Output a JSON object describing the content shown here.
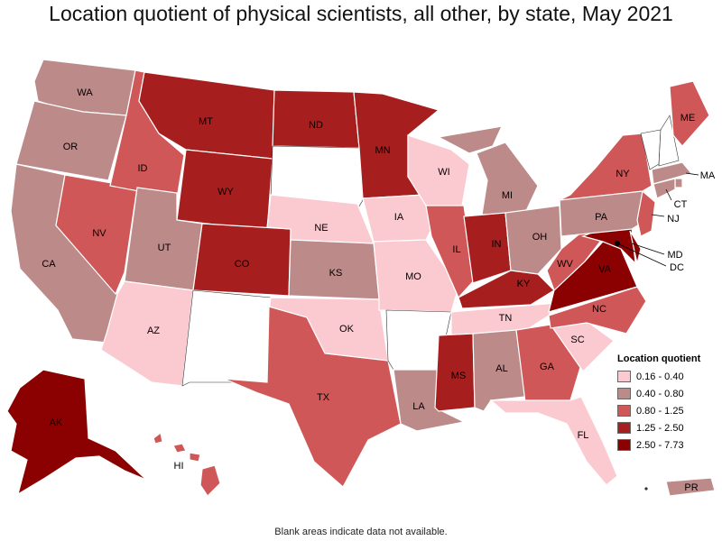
{
  "title": "Location quotient of physical scientists, all other, by state, May 2021",
  "note": "Blank areas indicate data not available.",
  "legend": {
    "title": "Location quotient",
    "classes": [
      {
        "label": "0.16 - 0.40",
        "color": "#fbc9d0"
      },
      {
        "label": "0.40 - 0.80",
        "color": "#bd8a8a"
      },
      {
        "label": "0.80 - 1.25",
        "color": "#cf5757"
      },
      {
        "label": "1.25 - 2.50",
        "color": "#a61e1e"
      },
      {
        "label": "2.50 - 7.73",
        "color": "#8b0000"
      }
    ]
  },
  "no_data_color": "#ffffff",
  "states": {
    "WA": "WA",
    "OR": "OR",
    "CA": "CA",
    "NV": "NV",
    "ID": "ID",
    "MT": "MT",
    "WY": "WY",
    "UT": "UT",
    "AZ": "AZ",
    "CO": "CO",
    "NE": "NE",
    "KS": "KS",
    "OK": "OK",
    "TX": "TX",
    "ND": "ND",
    "MN": "MN",
    "IA": "IA",
    "MO": "MO",
    "WI": "WI",
    "IL": "IL",
    "MI": "MI",
    "IN": "IN",
    "OH": "OH",
    "KY": "KY",
    "TN": "TN",
    "MS": "MS",
    "AL": "AL",
    "LA": "LA",
    "GA": "GA",
    "FL": "FL",
    "SC": "SC",
    "NC": "NC",
    "VA": "VA",
    "WV": "WV",
    "PA": "PA",
    "NY": "NY",
    "ME": "ME",
    "MA": "MA",
    "CT": "CT",
    "NJ": "NJ",
    "MD": "MD",
    "DC": "DC",
    "AK": "AK",
    "HI": "HI",
    "PR": "PR"
  }
}
